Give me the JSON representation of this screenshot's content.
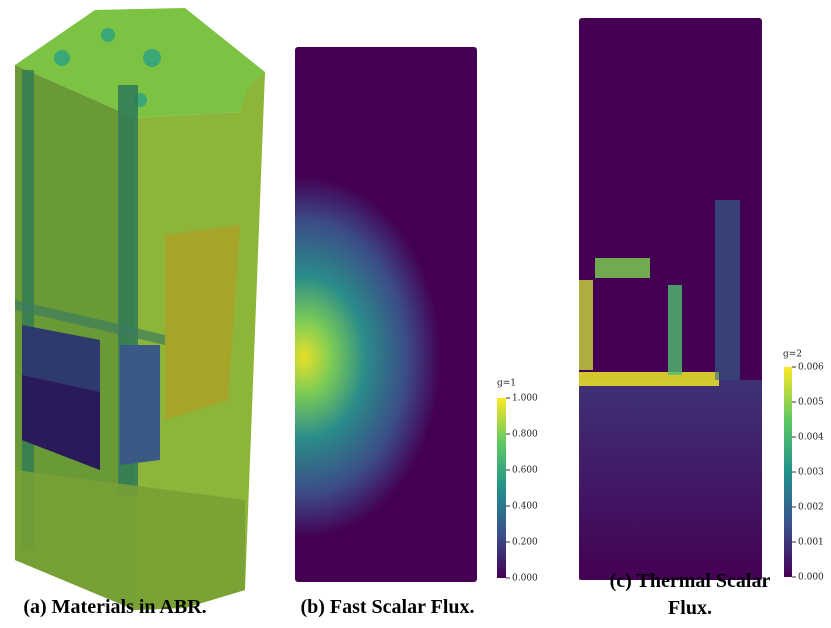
{
  "figures": [
    {
      "caption": "(a) Materials in ABR."
    },
    {
      "caption": "(b) Fast Scalar Flux.",
      "colorbar": {
        "title": "g=1",
        "ticks": [
          "1.000",
          "0.800",
          "0.600",
          "0.400",
          "0.200",
          "0.000"
        ]
      }
    },
    {
      "caption": "(c) Thermal Scalar Flux.",
      "colorbar": {
        "title": "g=2",
        "ticks": [
          "0.006",
          "0.005",
          "0.004",
          "0.003",
          "0.002",
          "0.001",
          "0.000"
        ]
      }
    }
  ]
}
